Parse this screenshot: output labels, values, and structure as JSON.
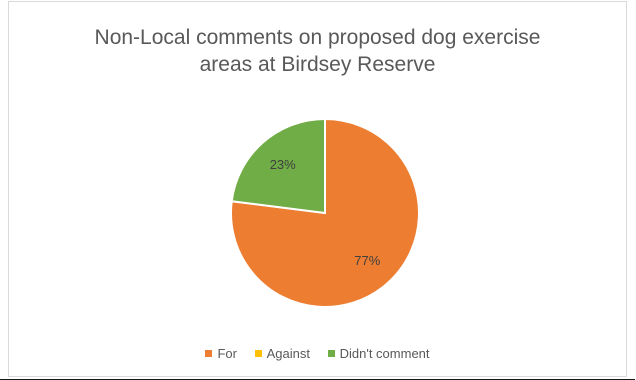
{
  "chart_data": {
    "type": "pie",
    "title_lines": [
      "Non-Local comments on proposed dog exercise",
      "areas at Birdsey Reserve"
    ],
    "categories": [
      "For",
      "Against",
      "Didn't comment"
    ],
    "values": [
      77,
      0,
      23
    ],
    "value_labels": [
      "77%",
      "",
      "23%"
    ],
    "colors": [
      "#ed7d31",
      "#ffc000",
      "#70ad47"
    ],
    "legend_position": "bottom"
  }
}
